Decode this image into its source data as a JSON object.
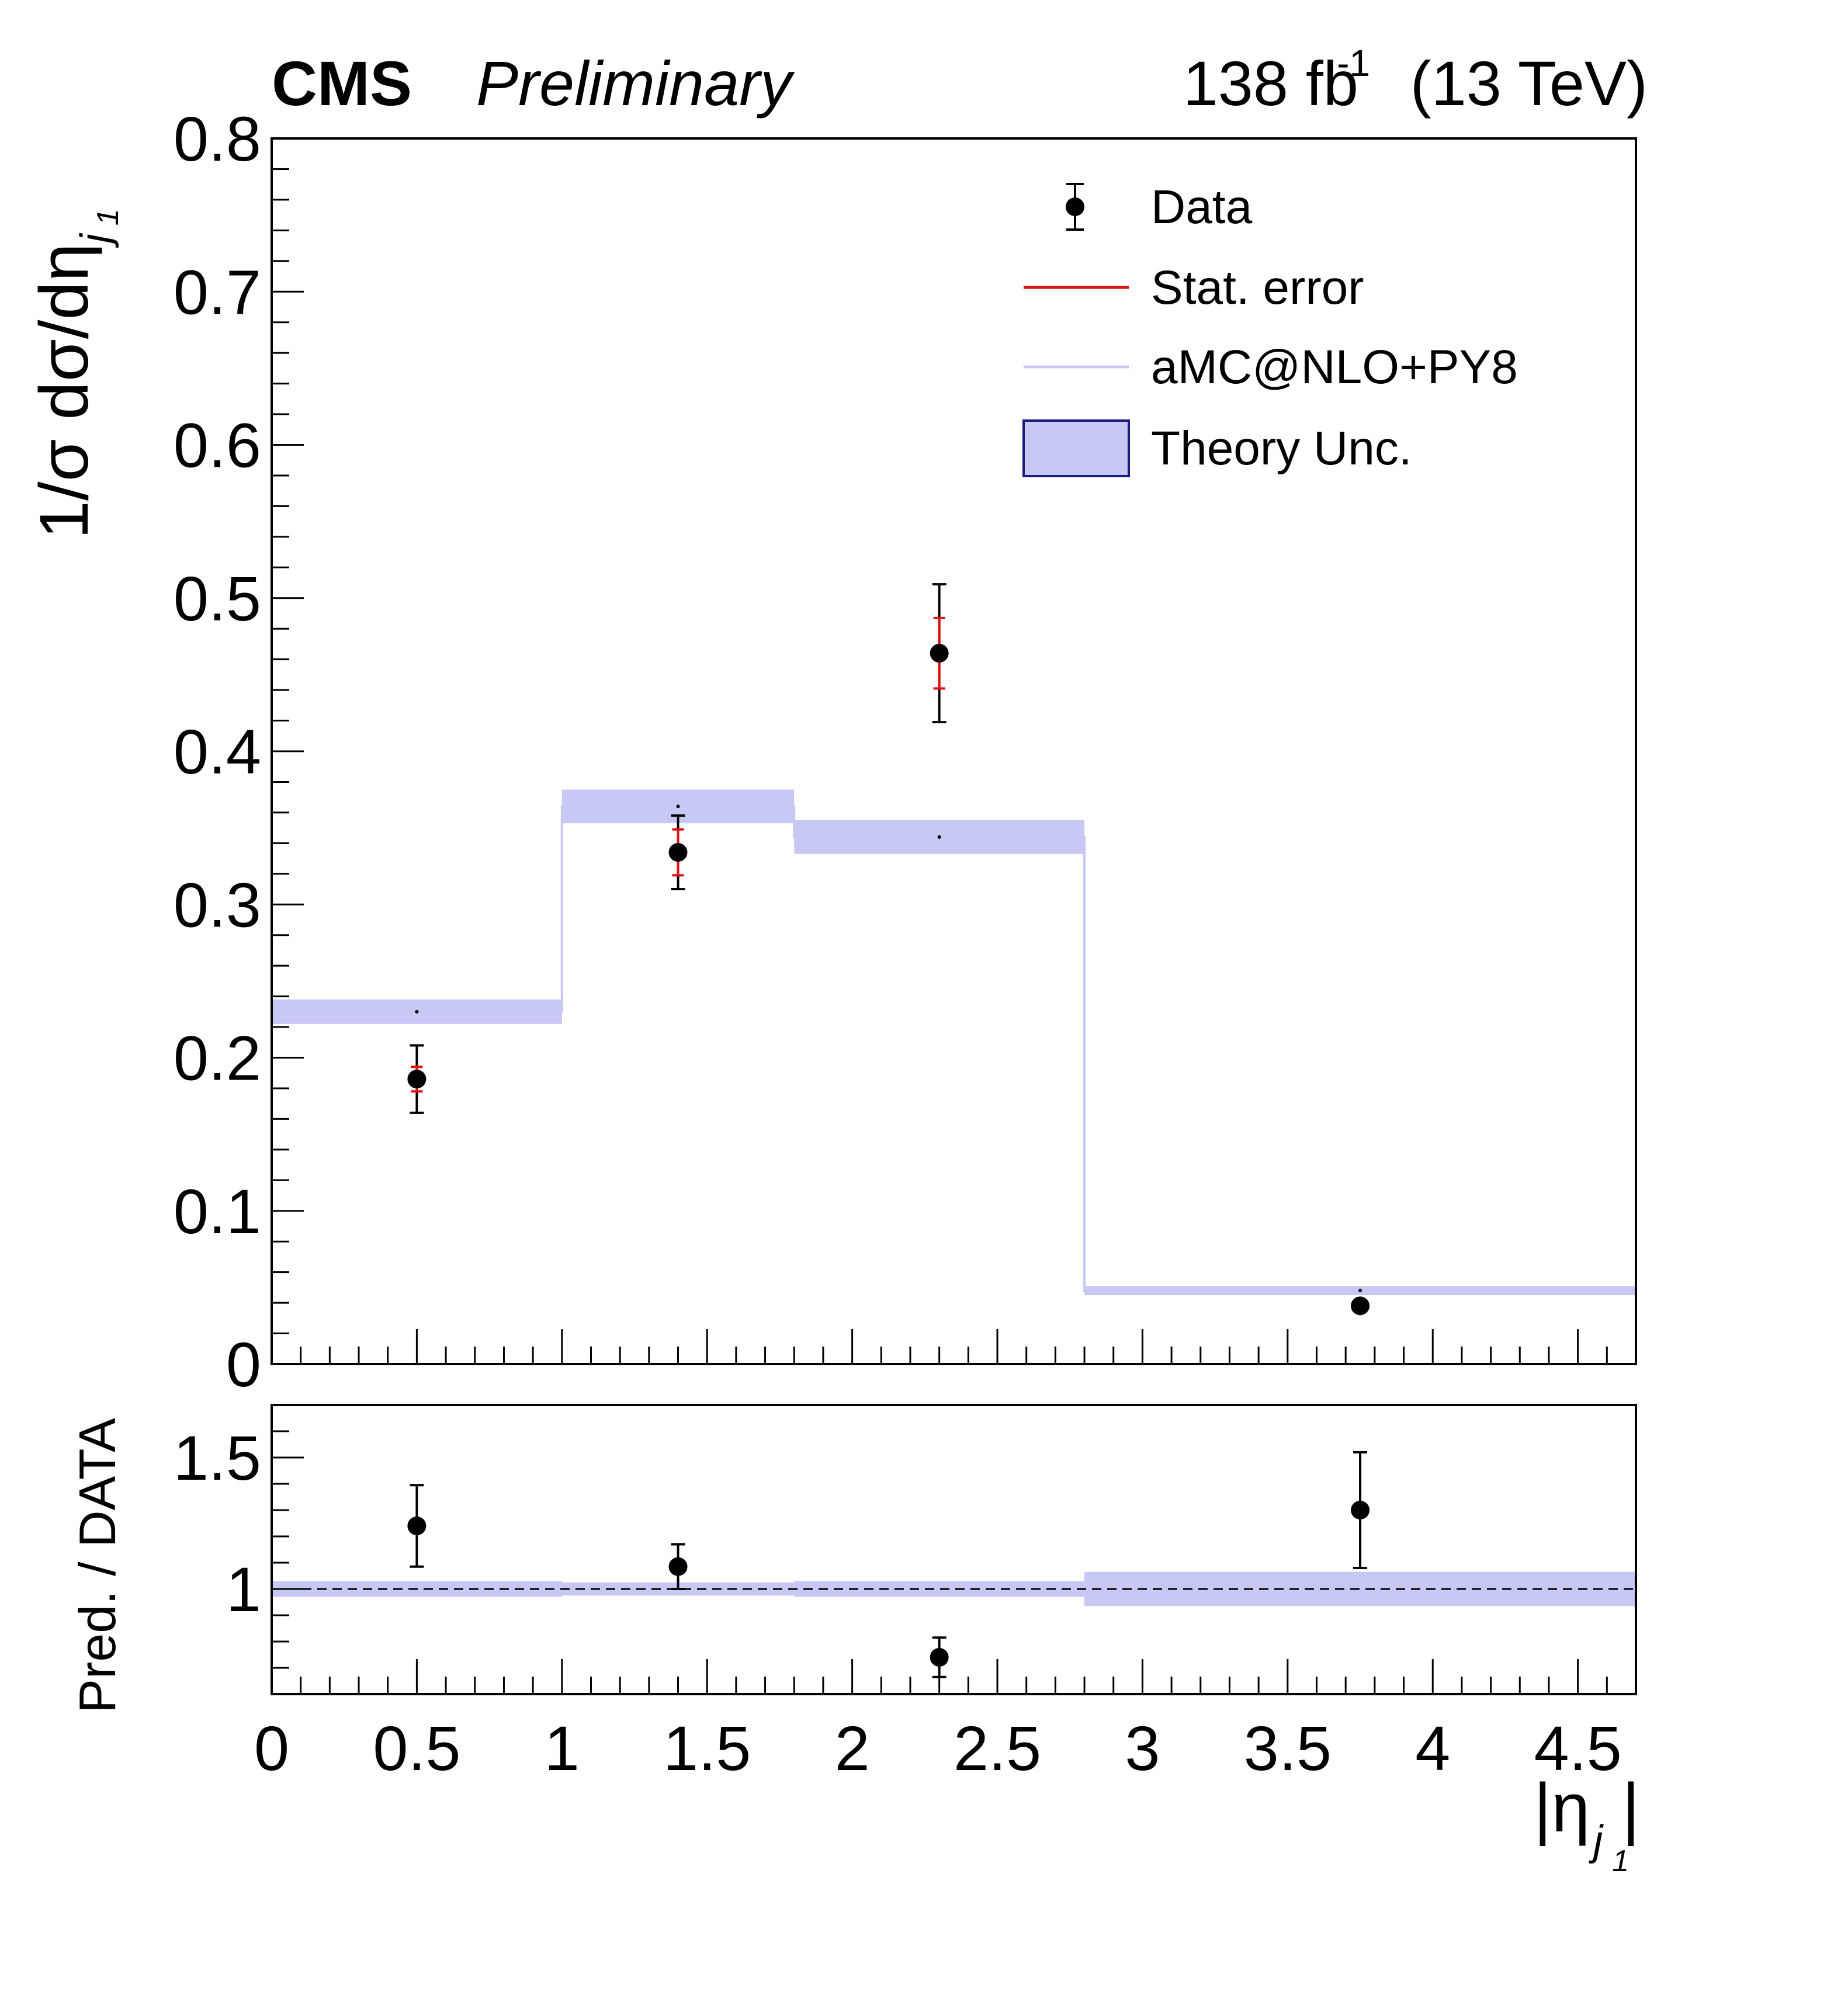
{
  "header": {
    "experiment": "CMS",
    "status": "Preliminary",
    "lumi_value": "138 fb",
    "lumi_exponent": "-1",
    "energy": "(13 TeV)"
  },
  "legend": {
    "data": "Data",
    "stat": "Stat. error",
    "mc": "aMC@NLO+PY8",
    "theory": "Theory Unc."
  },
  "colors": {
    "data": "#000000",
    "stat": "#e01010",
    "mc_line": "#c8c8f4",
    "band": "#c8c8f4",
    "band_edge": "#1a1a80"
  },
  "chart_data": [
    {
      "type": "scatter",
      "panel": "main",
      "ylabel": "1/σ dσ/dη",
      "ylabel_sub": "j",
      "ylabel_subsub": "1",
      "xlim": [
        0,
        4.7
      ],
      "ylim": [
        0,
        0.8
      ],
      "yticks": [
        "0",
        "0.1",
        "0.2",
        "0.3",
        "0.4",
        "0.5",
        "0.6",
        "0.7",
        "0.8"
      ],
      "bins": [
        [
          0,
          1.0
        ],
        [
          1.0,
          1.8
        ],
        [
          1.8,
          2.8
        ],
        [
          2.8,
          4.7
        ]
      ],
      "data": {
        "x": [
          0.5,
          1.4,
          2.3,
          3.75
        ],
        "y": [
          0.186,
          0.334,
          0.464,
          0.038
        ],
        "err_total": [
          0.022,
          0.024,
          0.045,
          0.003
        ],
        "err_stat": [
          0.008,
          0.015,
          0.023,
          0.001
        ]
      },
      "prediction": {
        "name": "aMC@NLO+PY8",
        "values": [
          0.23,
          0.364,
          0.344,
          0.048
        ],
        "unc": [
          0.008,
          0.011,
          0.011,
          0.003
        ]
      }
    },
    {
      "type": "scatter",
      "panel": "ratio",
      "ylabel": "Pred. / DATA",
      "xlabel": "|η",
      "xlabel_sub": "j",
      "xlabel_subsub": "1",
      "xlim": [
        0,
        4.7
      ],
      "ylim": [
        0.6,
        1.7
      ],
      "xticks": [
        "0",
        "0.5",
        "1",
        "1.5",
        "2",
        "2.5",
        "3",
        "3.5",
        "4",
        "4.5"
      ],
      "yticks": [
        "1",
        "1.5"
      ],
      "reference_line": 1.0,
      "ratio": {
        "x": [
          0.5,
          1.4,
          2.3,
          3.75
        ],
        "y": [
          1.24,
          1.085,
          0.74,
          1.3
        ],
        "err": [
          0.155,
          0.085,
          0.075,
          0.22
        ]
      },
      "band_unc": [
        0.03,
        0.025,
        0.03,
        0.065
      ]
    }
  ]
}
